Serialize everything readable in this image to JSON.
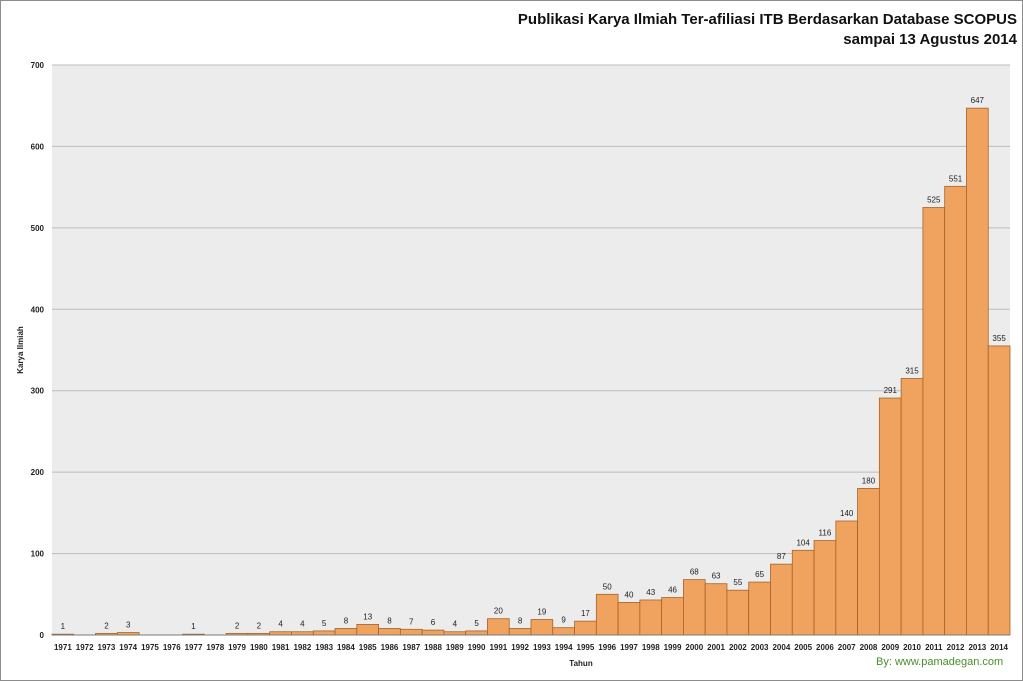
{
  "title_line1": "Publikasi Karya Ilmiah Ter-afiliasi ITB Berdasarkan Database SCOPUS",
  "title_line2": "sampai 13 Agustus 2014",
  "credit": "By: www.pamadegan.com",
  "colors": {
    "bar_fill": "#f0a35e",
    "bar_stroke": "#a5632b",
    "plot_bg": "#ececec",
    "grid": "#bdbdbd"
  },
  "chart_data": {
    "type": "bar",
    "title": "Publikasi Karya Ilmiah Ter-afiliasi ITB Berdasarkan Database SCOPUS sampai 13 Agustus 2014",
    "xlabel": "Tahun",
    "ylabel": "Karya Ilmiah",
    "ylim": [
      0,
      700
    ],
    "yticks": [
      0,
      100,
      200,
      300,
      400,
      500,
      600,
      700
    ],
    "grid": true,
    "categories": [
      "1971",
      "1972",
      "1973",
      "1974",
      "1975",
      "1976",
      "1977",
      "1978",
      "1979",
      "1980",
      "1981",
      "1982",
      "1983",
      "1984",
      "1985",
      "1986",
      "1987",
      "1988",
      "1989",
      "1990",
      "1991",
      "1992",
      "1993",
      "1994",
      "1995",
      "1996",
      "1997",
      "1998",
      "1999",
      "2000",
      "2001",
      "2002",
      "2003",
      "2004",
      "2005",
      "2006",
      "2007",
      "2008",
      "2009",
      "2010",
      "2011",
      "2012",
      "2013",
      "2014"
    ],
    "values": [
      1,
      null,
      2,
      3,
      null,
      null,
      1,
      null,
      2,
      2,
      4,
      4,
      5,
      8,
      13,
      8,
      7,
      6,
      4,
      5,
      20,
      8,
      19,
      9,
      17,
      50,
      40,
      43,
      46,
      68,
      63,
      55,
      65,
      87,
      104,
      116,
      140,
      180,
      291,
      315,
      525,
      551,
      647,
      355
    ]
  }
}
